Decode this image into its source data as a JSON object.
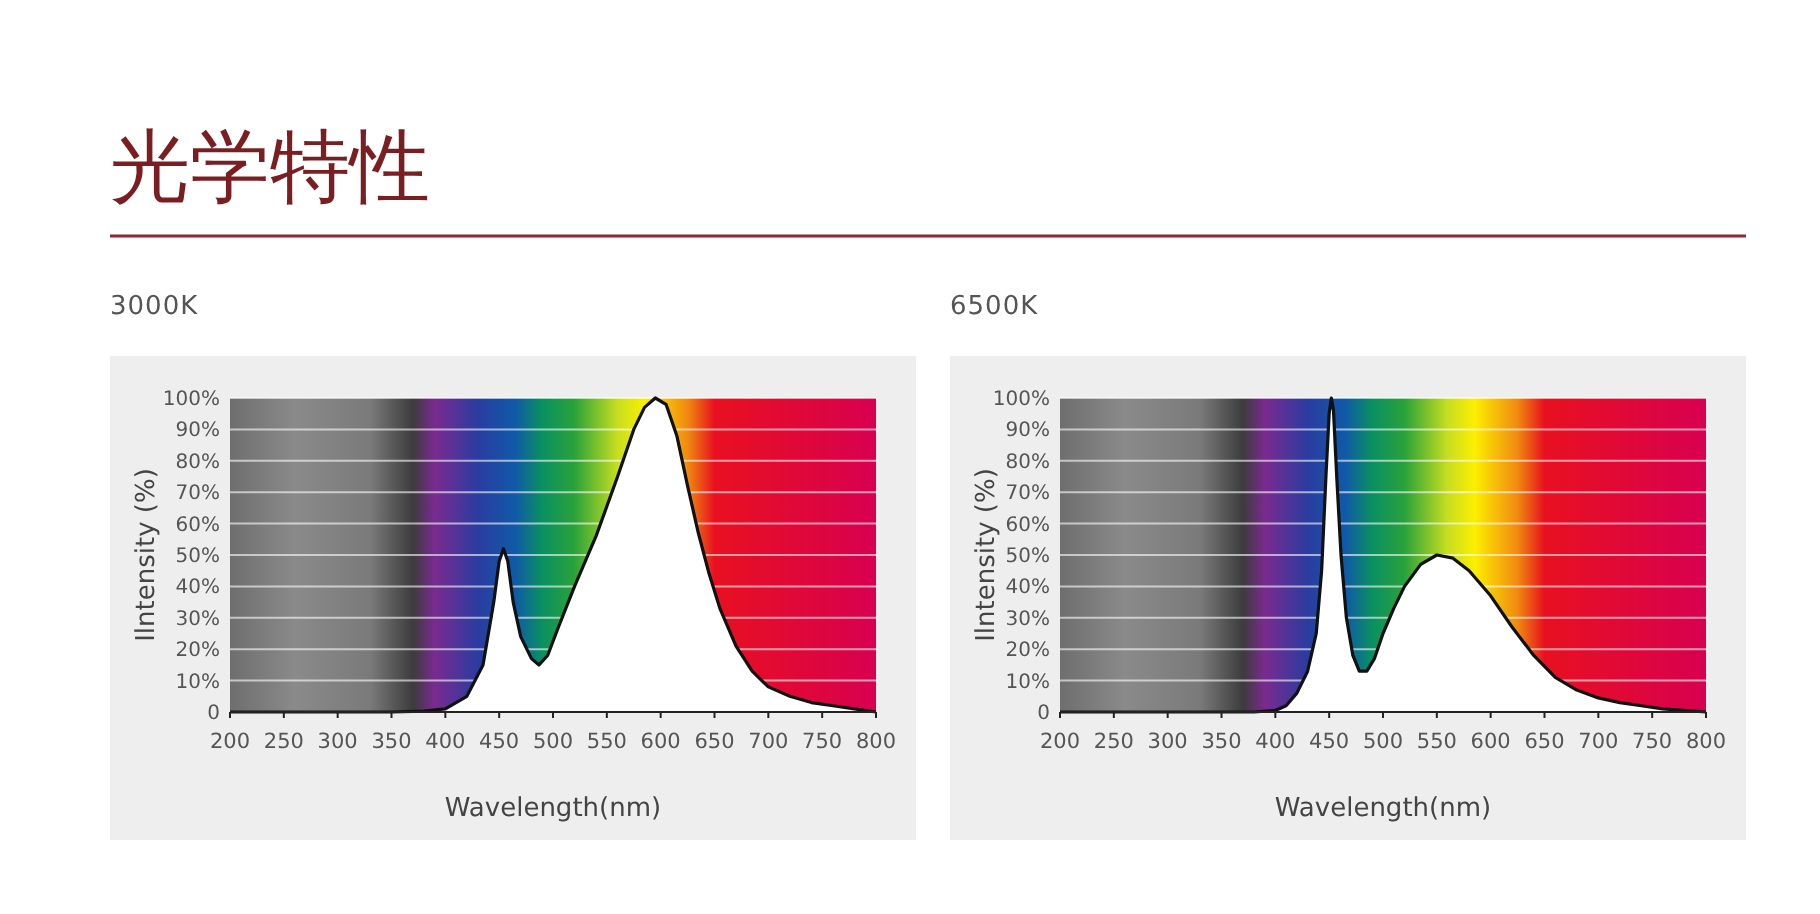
{
  "chart_data": [
    {
      "type": "area",
      "title": "光学特性",
      "subtitle": "3000K",
      "xlabel": "Wavelength(nm)",
      "ylabel": "Ilntensity (%)",
      "xlim": [
        200,
        800
      ],
      "xticks": [
        200,
        250,
        300,
        350,
        400,
        450,
        500,
        550,
        600,
        650,
        700,
        750,
        800
      ],
      "ylim": [
        0,
        100
      ],
      "yticks": [
        0,
        {
          "value": 10,
          "label": "10%"
        },
        {
          "value": 20,
          "label": "20%"
        },
        {
          "value": 30,
          "label": "30%"
        },
        {
          "value": 40,
          "label": "40%"
        },
        {
          "value": 50,
          "label": "50%"
        },
        {
          "value": 60,
          "label": "60%"
        },
        {
          "value": 70,
          "label": "70%"
        },
        {
          "value": 80,
          "label": "80%"
        },
        {
          "value": 90,
          "label": "90%"
        },
        {
          "value": 100,
          "label": "100%"
        }
      ],
      "grid": "y",
      "series": [
        {
          "color": "#ffffff",
          "x": [
            200,
            350,
            380,
            400,
            420,
            435,
            445,
            450,
            454,
            458,
            463,
            470,
            480,
            487,
            495,
            505,
            520,
            540,
            560,
            575,
            585,
            595,
            605,
            615,
            625,
            635,
            645,
            655,
            670,
            685,
            700,
            720,
            740,
            760,
            780,
            800
          ],
          "values": [
            0,
            0,
            0.3,
            1,
            5,
            15,
            35,
            48,
            52,
            48,
            35,
            24,
            17,
            15,
            18,
            27,
            40,
            56,
            75,
            90,
            97,
            100,
            98,
            88,
            72,
            57,
            44,
            33,
            21,
            13,
            8,
            5,
            3,
            2,
            1,
            0
          ]
        }
      ]
    },
    {
      "type": "area",
      "subtitle": "6500K",
      "xlabel": "Wavelength(nm)",
      "ylabel": "Ilntensity (%)",
      "xlim": [
        200,
        800
      ],
      "xticks": [
        200,
        250,
        300,
        350,
        400,
        450,
        500,
        550,
        600,
        650,
        700,
        750,
        800
      ],
      "ylim": [
        0,
        100
      ],
      "yticks": [
        0,
        {
          "value": 10,
          "label": "10%"
        },
        {
          "value": 20,
          "label": "20%"
        },
        {
          "value": 30,
          "label": "30%"
        },
        {
          "value": 40,
          "label": "40%"
        },
        {
          "value": 50,
          "label": "50%"
        },
        {
          "value": 60,
          "label": "60%"
        },
        {
          "value": 70,
          "label": "70%"
        },
        {
          "value": 80,
          "label": "80%"
        },
        {
          "value": 90,
          "label": "90%"
        },
        {
          "value": 100,
          "label": "100%"
        }
      ],
      "grid": "y",
      "series": [
        {
          "color": "#ffffff",
          "x": [
            200,
            380,
            400,
            410,
            420,
            430,
            438,
            443,
            447,
            450,
            452,
            454,
            457,
            461,
            466,
            472,
            478,
            485,
            492,
            500,
            510,
            520,
            535,
            550,
            565,
            580,
            600,
            620,
            640,
            660,
            680,
            700,
            720,
            740,
            760,
            780,
            800
          ],
          "values": [
            0,
            0,
            0.5,
            2,
            6,
            13,
            25,
            45,
            75,
            95,
            100,
            96,
            75,
            50,
            30,
            18,
            13,
            13,
            17,
            25,
            33,
            40,
            47,
            50,
            49,
            45,
            37,
            27,
            18,
            11,
            7,
            4.5,
            3,
            2,
            1,
            0.5,
            0
          ]
        }
      ]
    }
  ]
}
